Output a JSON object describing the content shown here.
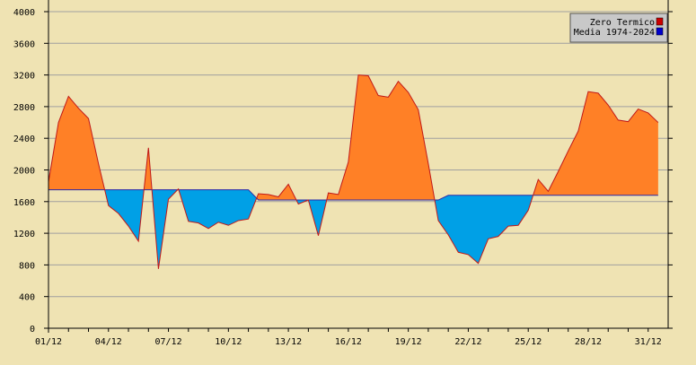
{
  "chart_data": {
    "type": "area",
    "title": "",
    "xlabel": "",
    "ylabel": "",
    "ylim": [
      0,
      4000
    ],
    "yticks": [
      0,
      400,
      800,
      1200,
      1600,
      2000,
      2400,
      2800,
      3200,
      3600,
      4000
    ],
    "xlim": [
      1,
      32
    ],
    "xtick_labels": [
      "01/12",
      "04/12",
      "07/12",
      "10/12",
      "13/12",
      "16/12",
      "19/12",
      "22/12",
      "25/12",
      "28/12",
      "31/12"
    ],
    "grid": "horizontal",
    "legend_position": "top-right",
    "colors": {
      "background": "#efe3b3",
      "above_fill": "#ff8026",
      "below_fill": "#00a0e6",
      "line": "#c01818",
      "grid": "#a0a0a0",
      "legend_zero": "#cc0000",
      "legend_media": "#0000cc"
    },
    "series": [
      {
        "name": "Zero Termico",
        "points": [
          [
            1.0,
            1850
          ],
          [
            1.5,
            2600
          ],
          [
            2.0,
            2930
          ],
          [
            2.5,
            2780
          ],
          [
            3.0,
            2650
          ],
          [
            3.5,
            2080
          ],
          [
            4.0,
            1550
          ],
          [
            4.5,
            1450
          ],
          [
            5.0,
            1290
          ],
          [
            5.5,
            1100
          ],
          [
            6.0,
            2280
          ],
          [
            6.5,
            750
          ],
          [
            7.0,
            1630
          ],
          [
            7.5,
            1760
          ],
          [
            8.0,
            1350
          ],
          [
            8.5,
            1330
          ],
          [
            9.0,
            1260
          ],
          [
            9.5,
            1340
          ],
          [
            10.0,
            1300
          ],
          [
            10.5,
            1360
          ],
          [
            11.0,
            1380
          ],
          [
            11.5,
            1700
          ],
          [
            12.0,
            1690
          ],
          [
            12.5,
            1660
          ],
          [
            13.0,
            1820
          ],
          [
            13.5,
            1570
          ],
          [
            14.0,
            1620
          ],
          [
            14.5,
            1170
          ],
          [
            15.0,
            1710
          ],
          [
            15.5,
            1690
          ],
          [
            16.0,
            2100
          ],
          [
            16.5,
            3200
          ],
          [
            17.0,
            3190
          ],
          [
            17.5,
            2940
          ],
          [
            18.0,
            2920
          ],
          [
            18.5,
            3120
          ],
          [
            19.0,
            2980
          ],
          [
            19.5,
            2760
          ],
          [
            20.0,
            2080
          ],
          [
            20.5,
            1360
          ],
          [
            21.0,
            1180
          ],
          [
            21.5,
            960
          ],
          [
            22.0,
            930
          ],
          [
            22.5,
            820
          ],
          [
            23.0,
            1130
          ],
          [
            23.5,
            1160
          ],
          [
            24.0,
            1290
          ],
          [
            24.5,
            1300
          ],
          [
            25.0,
            1490
          ],
          [
            25.5,
            1880
          ],
          [
            26.0,
            1730
          ],
          [
            26.5,
            1980
          ],
          [
            27.0,
            2240
          ],
          [
            27.5,
            2490
          ],
          [
            28.0,
            2990
          ],
          [
            28.5,
            2970
          ],
          [
            29.0,
            2820
          ],
          [
            29.5,
            2630
          ],
          [
            30.0,
            2610
          ],
          [
            30.5,
            2770
          ],
          [
            31.0,
            2720
          ],
          [
            31.5,
            2600
          ]
        ]
      },
      {
        "name": "Media 1974-2024",
        "points": [
          [
            1.0,
            1750
          ],
          [
            2.0,
            1750
          ],
          [
            3.0,
            1750
          ],
          [
            4.0,
            1750
          ],
          [
            5.0,
            1750
          ],
          [
            6.0,
            1750
          ],
          [
            7.0,
            1750
          ],
          [
            8.0,
            1750
          ],
          [
            9.0,
            1750
          ],
          [
            10.0,
            1750
          ],
          [
            11.0,
            1750
          ],
          [
            11.5,
            1620
          ],
          [
            12.0,
            1620
          ],
          [
            13.0,
            1620
          ],
          [
            14.0,
            1620
          ],
          [
            15.0,
            1620
          ],
          [
            16.0,
            1620
          ],
          [
            17.0,
            1620
          ],
          [
            18.0,
            1620
          ],
          [
            19.0,
            1620
          ],
          [
            20.0,
            1620
          ],
          [
            20.5,
            1620
          ],
          [
            21.0,
            1680
          ],
          [
            22.0,
            1680
          ],
          [
            23.0,
            1680
          ],
          [
            24.0,
            1680
          ],
          [
            25.0,
            1680
          ],
          [
            26.0,
            1680
          ],
          [
            27.0,
            1680
          ],
          [
            28.0,
            1680
          ],
          [
            29.0,
            1680
          ],
          [
            30.0,
            1680
          ],
          [
            31.0,
            1680
          ],
          [
            31.5,
            1680
          ]
        ]
      }
    ]
  }
}
